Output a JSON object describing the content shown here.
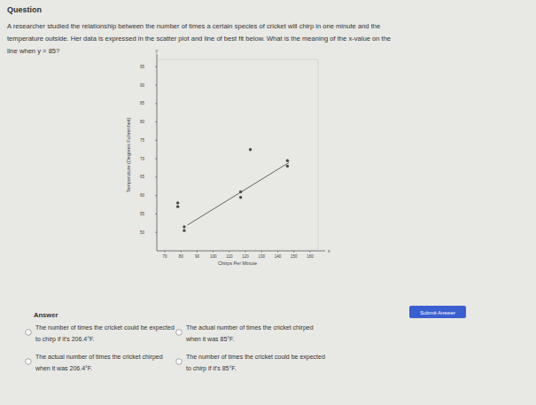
{
  "page": {
    "header": "Question",
    "question": [
      "A researcher studied the relationship between the number of times a certain species of cricket will chirp in one minute and the",
      "temperature outside. Her data is expressed in the scatter plot and line of best fit below. What is the meaning of the x-value on the",
      "line when y = 85?"
    ],
    "answer_label": "Answer",
    "options": [
      [
        "The number of times the cricket could be expected",
        "to chirp if it's 206.4°F."
      ],
      [
        "The actual number of times the cricket chirped",
        "when it was 85°F."
      ],
      [
        "The actual number of times the cricket chirped",
        "when it was 206.4°F."
      ],
      [
        "The number of times the cricket could be expected",
        "to chirp if it's 85°F."
      ]
    ],
    "submit": "Submit Answer"
  },
  "chart_data": {
    "type": "scatter",
    "x_label": "Chirps Per Minute",
    "y_label": "Temperature (Degrees Fahrenheit)",
    "x_axis_symbol": "x",
    "y_axis_symbol": "y",
    "xlim": [
      65,
      165
    ],
    "ylim": [
      45,
      97
    ],
    "xticks": [
      70,
      80,
      90,
      100,
      110,
      120,
      130,
      140,
      150,
      160
    ],
    "yticks": [
      50,
      55,
      60,
      65,
      70,
      75,
      80,
      85,
      90,
      95
    ],
    "grid": false,
    "series": [
      {
        "type": "scatter",
        "color": "#4a4a4a",
        "marker": "circle",
        "x": [
          78,
          78,
          82,
          82,
          117,
          117,
          123,
          146,
          146
        ],
        "values": [
          58,
          57,
          51.5,
          50.5,
          61,
          59.5,
          72.5,
          69.5,
          68
        ]
      },
      {
        "type": "line",
        "color": "#555555",
        "line_style": "solid",
        "x": [
          84,
          147
        ],
        "values": [
          52,
          69
        ]
      }
    ]
  }
}
